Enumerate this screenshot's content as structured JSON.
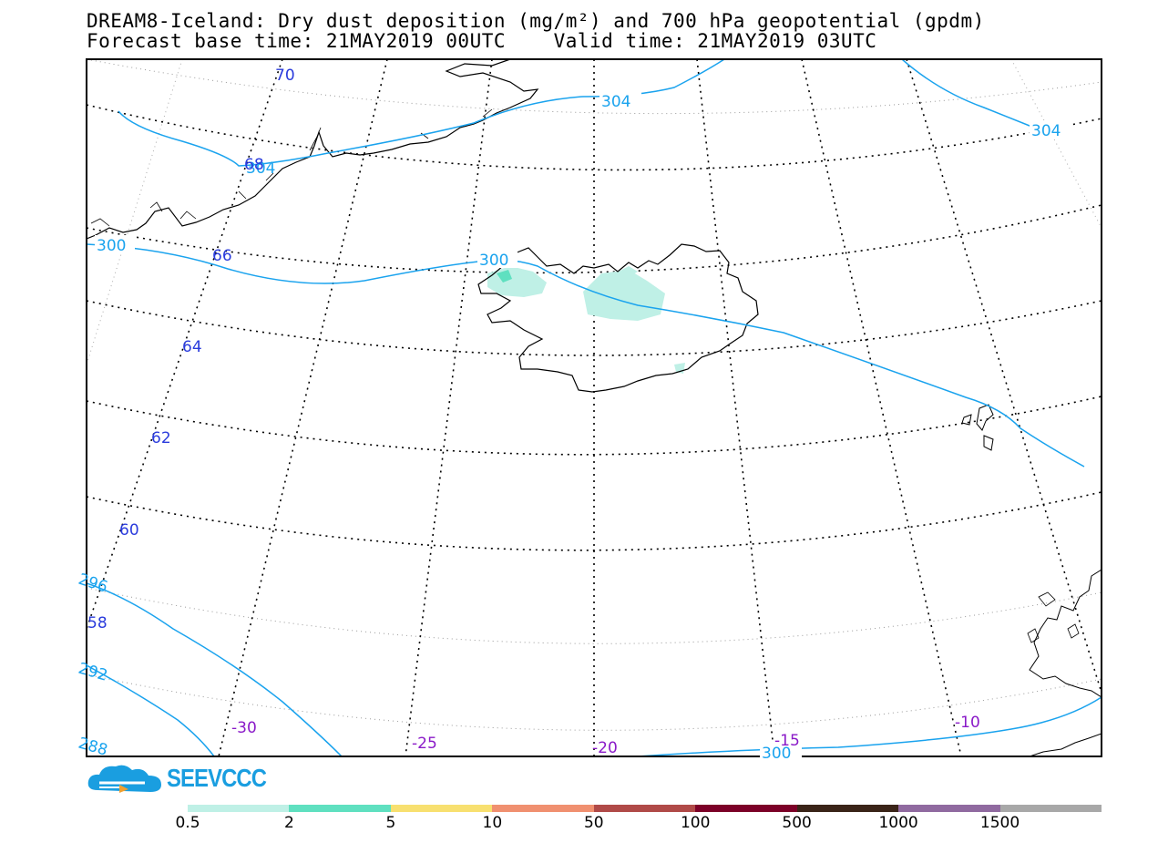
{
  "header": {
    "title_line1": "DREAM8-Iceland: Dry dust deposition (mg/m²) and 700 hPa geopotential (gpdm)",
    "title_line2": "Forecast base time: 21MAY2019 00UTC    Valid time: 21MAY2019 03UTC"
  },
  "map": {
    "region": "Iceland",
    "latitude_labels": [
      "70",
      "68",
      "66",
      "64",
      "62",
      "60",
      "58"
    ],
    "longitude_labels": [
      "-30",
      "-25",
      "-20",
      "-15",
      "-10"
    ],
    "contour_labels": [
      "304",
      "304",
      "304",
      "300",
      "300",
      "300",
      "296",
      "292",
      "288"
    ],
    "contour_color": "#1aa3ee",
    "graticule_label_color_lat": "#2a3bdc",
    "graticule_label_color_lon": "#8a1ac8",
    "dust_patch_color": "#bff0e6"
  },
  "logo": {
    "text": "SEEVCCC",
    "icon": "cloud-logo-icon"
  },
  "legend": {
    "colors": [
      "#bff0e6",
      "#5fe0c0",
      "#f8e070",
      "#f09070",
      "#b04a48",
      "#7c0028",
      "#3a2418",
      "#906aa0",
      "#a8a8a8"
    ],
    "labels": [
      "0.5",
      "2",
      "5",
      "10",
      "50",
      "100",
      "500",
      "1000",
      "1500"
    ]
  }
}
